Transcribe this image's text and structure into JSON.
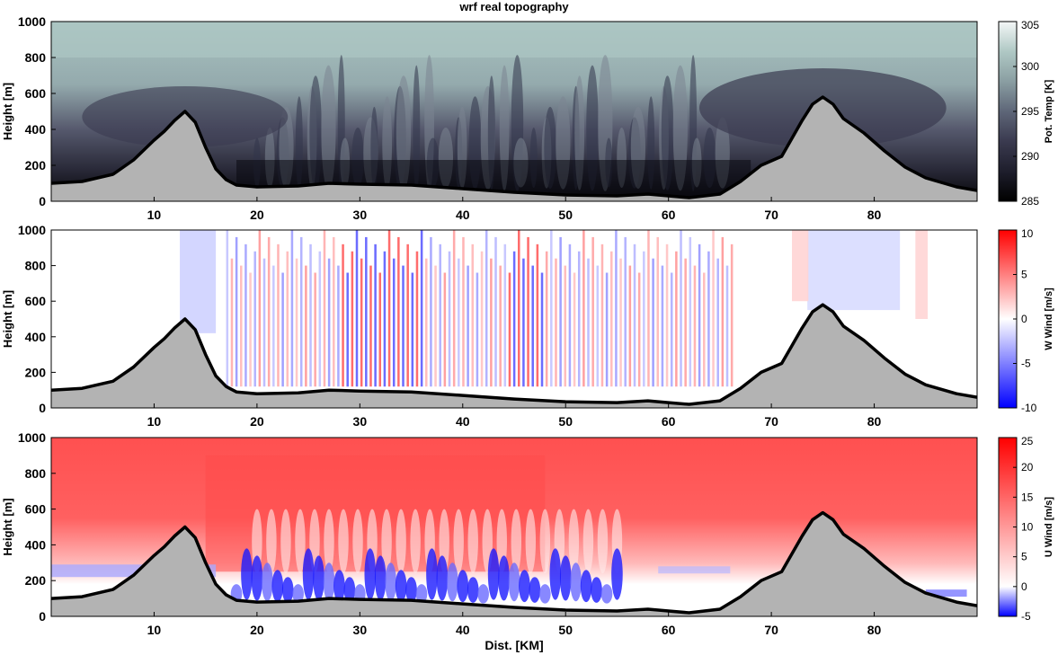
{
  "figure_title": "wrf real topography",
  "xlabel": "Dist. [KM]",
  "chart_data": [
    {
      "type": "heatmap",
      "variable": "Potential temperature cross-section",
      "ylabel": "Height [m]",
      "colorbar_label": "Pot. Temp [K]",
      "xlim": [
        0,
        90
      ],
      "ylim": [
        0,
        1000
      ],
      "xticks": [
        10,
        20,
        30,
        40,
        50,
        60,
        70,
        80
      ],
      "yticks": [
        0,
        200,
        400,
        600,
        800,
        1000
      ],
      "clim": [
        285,
        305
      ],
      "cticks": [
        285,
        290,
        295,
        300,
        305
      ],
      "colormap": [
        "#000000",
        "#1e1e2c",
        "#3a3a4f",
        "#5e6678",
        "#8a9ea2",
        "#afc8c4",
        "#f4f7f7"
      ]
    },
    {
      "type": "heatmap",
      "variable": "Vertical wind cross-section",
      "ylabel": "Height [m]",
      "colorbar_label": "W Wind [m/s]",
      "xlim": [
        0,
        90
      ],
      "ylim": [
        0,
        1000
      ],
      "xticks": [
        10,
        20,
        30,
        40,
        50,
        60,
        70,
        80
      ],
      "yticks": [
        0,
        200,
        400,
        600,
        800,
        1000
      ],
      "clim": [
        -10,
        10
      ],
      "cticks": [
        -10,
        -5,
        0,
        5,
        10
      ],
      "colormap": [
        "#0000ff",
        "#ffffff",
        "#ff0000"
      ]
    },
    {
      "type": "heatmap",
      "variable": "Horizontal wind cross-section",
      "ylabel": "Height [m]",
      "colorbar_label": "U Wind [m/s]",
      "xlim": [
        0,
        90
      ],
      "ylim": [
        0,
        1000
      ],
      "xticks": [
        10,
        20,
        30,
        40,
        50,
        60,
        70,
        80
      ],
      "yticks": [
        0,
        200,
        400,
        600,
        800,
        1000
      ],
      "clim": [
        -5,
        25
      ],
      "cticks": [
        -5,
        0,
        5,
        10,
        15,
        20,
        25
      ],
      "colormap": [
        "#0000ff",
        "#ffffff",
        "#ff0000"
      ]
    }
  ],
  "terrain": {
    "fill": "#b3b3b3",
    "x": [
      0,
      3,
      6,
      8,
      10,
      11,
      12,
      13,
      14,
      15,
      16,
      17,
      18,
      20,
      24,
      27,
      30,
      35,
      40,
      45,
      50,
      55,
      58,
      60,
      62,
      65,
      67,
      69,
      71,
      72,
      73,
      74,
      75,
      76,
      77,
      79,
      81,
      83,
      85,
      88,
      90
    ],
    "height": [
      100,
      110,
      150,
      230,
      340,
      390,
      450,
      500,
      440,
      300,
      180,
      120,
      90,
      80,
      85,
      100,
      95,
      90,
      70,
      50,
      35,
      30,
      40,
      30,
      20,
      40,
      110,
      200,
      250,
      350,
      450,
      540,
      580,
      540,
      460,
      380,
      280,
      190,
      130,
      80,
      60
    ]
  }
}
